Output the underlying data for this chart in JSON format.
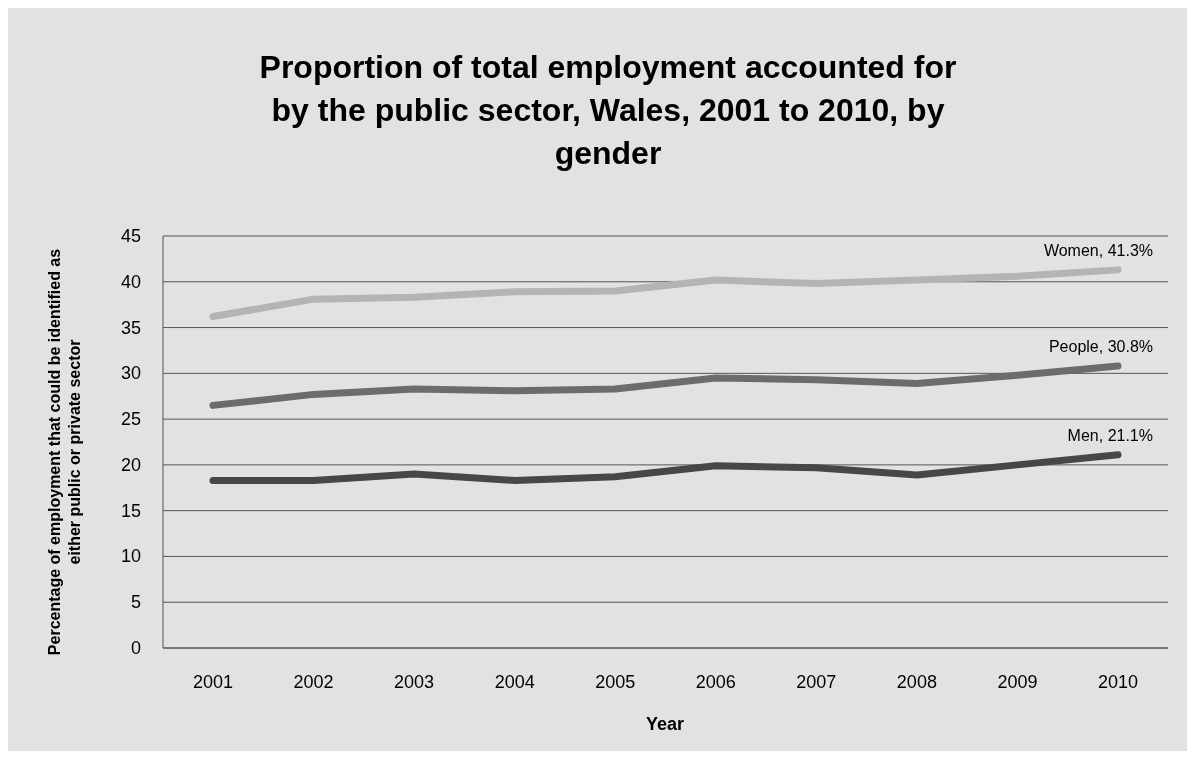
{
  "chart_data": {
    "type": "line",
    "title": "Proportion of total employment accounted for by the public sector, Wales, 2001 to 2010, by gender",
    "xlabel": "Year",
    "ylabel": "Percentage of employment that could be identified as either public or private sector",
    "categories": [
      "2001",
      "2002",
      "2003",
      "2004",
      "2005",
      "2006",
      "2007",
      "2008",
      "2009",
      "2010"
    ],
    "series": [
      {
        "color": "#b4b4b4",
        "values": [
          36.2,
          38.1,
          38.3,
          38.9,
          39.0,
          40.2,
          39.8,
          40.2,
          40.6,
          41.3
        ]
      },
      {
        "color": "#6c6c6c",
        "values": [
          26.5,
          27.7,
          28.3,
          28.1,
          28.3,
          29.5,
          29.3,
          28.9,
          29.8,
          30.8
        ]
      },
      {
        "color": "#474747",
        "values": [
          18.3,
          18.3,
          19.0,
          18.3,
          18.7,
          19.9,
          19.7,
          18.9,
          20.0,
          21.1
        ]
      }
    ],
    "annotations": [
      {
        "text": "Women, 41.3%",
        "x": "2010",
        "y": 41.3
      },
      {
        "text": "People, 30.8%",
        "x": "2010",
        "y": 30.8
      },
      {
        "text": "Men, 21.1%",
        "x": "2010",
        "y": 21.1
      }
    ],
    "ylim": [
      0,
      45
    ],
    "yticks": [
      0,
      5,
      10,
      15,
      20,
      25,
      30,
      35,
      40,
      45
    ],
    "grid": "y",
    "marker": "none",
    "line_style": "solid"
  }
}
